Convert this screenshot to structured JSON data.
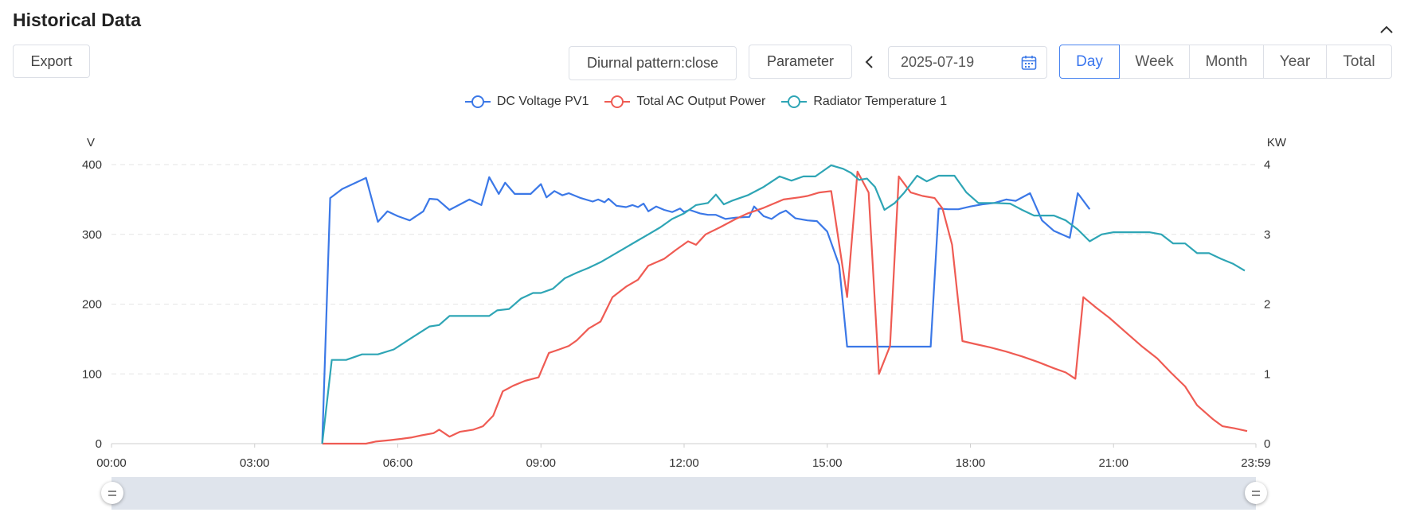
{
  "header": {
    "title": "Historical Data",
    "export_label": "Export",
    "diurnal_label": "Diurnal pattern:close",
    "parameter_label": "Parameter",
    "date_value": "2025-07-19",
    "periods": [
      "Day",
      "Week",
      "Month",
      "Year",
      "Total"
    ],
    "active_period": "Day"
  },
  "chart_data": {
    "type": "line",
    "xlabel": "",
    "x_ticks": [
      "00:00",
      "03:00",
      "06:00",
      "09:00",
      "12:00",
      "15:00",
      "18:00",
      "21:00",
      "23:59"
    ],
    "left_axis": {
      "unit": "V",
      "ylim": [
        0,
        400
      ],
      "ticks": [
        "0",
        "100",
        "200",
        "300",
        "400"
      ]
    },
    "right_axis": {
      "unit": "KW",
      "ylim": [
        0,
        4
      ],
      "ticks": [
        "0",
        "1",
        "2",
        "3",
        "4"
      ]
    },
    "grid": true,
    "legend_position": "top-center",
    "series": [
      {
        "name": "DC Voltage PV1",
        "color": "#3b78e7",
        "axis": "left",
        "points": [
          [
            "04:25",
            0
          ],
          [
            "04:35",
            352
          ],
          [
            "04:50",
            365
          ],
          [
            "05:05",
            373
          ],
          [
            "05:20",
            381
          ],
          [
            "05:35",
            318
          ],
          [
            "05:47",
            333
          ],
          [
            "06:00",
            326
          ],
          [
            "06:15",
            320
          ],
          [
            "06:32",
            333
          ],
          [
            "06:40",
            351
          ],
          [
            "06:50",
            350
          ],
          [
            "07:05",
            335
          ],
          [
            "07:20",
            344
          ],
          [
            "07:30",
            350
          ],
          [
            "07:45",
            342
          ],
          [
            "07:55",
            382
          ],
          [
            "08:07",
            358
          ],
          [
            "08:15",
            374
          ],
          [
            "08:27",
            358
          ],
          [
            "08:47",
            358
          ],
          [
            "09:00",
            372
          ],
          [
            "09:07",
            353
          ],
          [
            "09:17",
            362
          ],
          [
            "09:27",
            356
          ],
          [
            "09:35",
            359
          ],
          [
            "09:50",
            352
          ],
          [
            "10:05",
            347
          ],
          [
            "10:12",
            350
          ],
          [
            "10:20",
            346
          ],
          [
            "10:25",
            351
          ],
          [
            "10:35",
            341
          ],
          [
            "10:47",
            339
          ],
          [
            "10:55",
            342
          ],
          [
            "11:02",
            339
          ],
          [
            "11:09",
            344
          ],
          [
            "11:15",
            333
          ],
          [
            "11:25",
            340
          ],
          [
            "11:35",
            335
          ],
          [
            "11:45",
            332
          ],
          [
            "11:55",
            337
          ],
          [
            "12:00",
            332
          ],
          [
            "12:07",
            335
          ],
          [
            "12:20",
            330
          ],
          [
            "12:30",
            328
          ],
          [
            "12:40",
            328
          ],
          [
            "12:52",
            322
          ],
          [
            "13:05",
            324
          ],
          [
            "13:22",
            325
          ],
          [
            "13:28",
            340
          ],
          [
            "13:40",
            326
          ],
          [
            "13:50",
            322
          ],
          [
            "14:00",
            330
          ],
          [
            "14:08",
            334
          ],
          [
            "14:20",
            323
          ],
          [
            "14:35",
            320
          ],
          [
            "14:47",
            319
          ],
          [
            "15:00",
            304
          ],
          [
            "15:15",
            256
          ],
          [
            "15:25",
            139
          ],
          [
            "15:40",
            139
          ],
          [
            "17:10",
            139
          ],
          [
            "17:20",
            337
          ],
          [
            "17:32",
            336
          ],
          [
            "17:45",
            336
          ],
          [
            "18:00",
            340
          ],
          [
            "18:15",
            343
          ],
          [
            "18:30",
            345
          ],
          [
            "18:45",
            350
          ],
          [
            "18:57",
            348
          ],
          [
            "19:15",
            359
          ],
          [
            "19:30",
            320
          ],
          [
            "19:45",
            305
          ],
          [
            "20:05",
            295
          ],
          [
            "20:15",
            359
          ],
          [
            "20:30",
            336
          ]
        ]
      },
      {
        "name": "Total AC Output Power",
        "color": "#ef5b53",
        "axis": "right",
        "points": [
          [
            "04:25",
            0
          ],
          [
            "05:05",
            0
          ],
          [
            "05:20",
            0
          ],
          [
            "05:32",
            0.03
          ],
          [
            "05:50",
            0.05
          ],
          [
            "06:05",
            0.07
          ],
          [
            "06:18",
            0.09
          ],
          [
            "06:30",
            0.12
          ],
          [
            "06:45",
            0.15
          ],
          [
            "06:52",
            0.2
          ],
          [
            "07:05",
            0.1
          ],
          [
            "07:18",
            0.17
          ],
          [
            "07:35",
            0.2
          ],
          [
            "07:47",
            0.25
          ],
          [
            "08:00",
            0.4
          ],
          [
            "08:12",
            0.75
          ],
          [
            "08:25",
            0.83
          ],
          [
            "08:40",
            0.9
          ],
          [
            "08:57",
            0.95
          ],
          [
            "09:10",
            1.3
          ],
          [
            "09:23",
            1.35
          ],
          [
            "09:35",
            1.4
          ],
          [
            "09:45",
            1.48
          ],
          [
            "10:00",
            1.65
          ],
          [
            "10:15",
            1.75
          ],
          [
            "10:30",
            2.1
          ],
          [
            "10:47",
            2.25
          ],
          [
            "11:02",
            2.35
          ],
          [
            "11:15",
            2.55
          ],
          [
            "11:35",
            2.65
          ],
          [
            "11:50",
            2.78
          ],
          [
            "12:05",
            2.9
          ],
          [
            "12:15",
            2.85
          ],
          [
            "12:27",
            3.0
          ],
          [
            "12:45",
            3.1
          ],
          [
            "13:05",
            3.22
          ],
          [
            "13:20",
            3.3
          ],
          [
            "13:40",
            3.38
          ],
          [
            "14:05",
            3.5
          ],
          [
            "14:25",
            3.53
          ],
          [
            "14:35",
            3.55
          ],
          [
            "14:50",
            3.6
          ],
          [
            "15:05",
            3.62
          ],
          [
            "15:25",
            2.1
          ],
          [
            "15:38",
            3.9
          ],
          [
            "15:52",
            3.6
          ],
          [
            "16:05",
            1.0
          ],
          [
            "16:19",
            1.4
          ],
          [
            "16:30",
            3.83
          ],
          [
            "16:45",
            3.6
          ],
          [
            "17:00",
            3.55
          ],
          [
            "17:15",
            3.52
          ],
          [
            "17:25",
            3.37
          ],
          [
            "17:37",
            2.85
          ],
          [
            "17:50",
            1.47
          ],
          [
            "18:05",
            1.43
          ],
          [
            "18:25",
            1.38
          ],
          [
            "18:45",
            1.32
          ],
          [
            "19:05",
            1.25
          ],
          [
            "19:25",
            1.17
          ],
          [
            "19:45",
            1.08
          ],
          [
            "20:00",
            1.02
          ],
          [
            "20:12",
            0.93
          ],
          [
            "20:22",
            2.1
          ],
          [
            "20:38",
            1.95
          ],
          [
            "20:55",
            1.8
          ],
          [
            "21:15",
            1.6
          ],
          [
            "21:35",
            1.4
          ],
          [
            "21:55",
            1.22
          ],
          [
            "22:12",
            1.02
          ],
          [
            "22:30",
            0.82
          ],
          [
            "22:45",
            0.55
          ],
          [
            "23:05",
            0.35
          ],
          [
            "23:17",
            0.25
          ],
          [
            "23:32",
            0.22
          ],
          [
            "23:48",
            0.18
          ]
        ]
      },
      {
        "name": "Radiator Temperature 1",
        "color": "#2ea5b5",
        "axis": "left",
        "points": [
          [
            "04:25",
            0
          ],
          [
            "04:37",
            120
          ],
          [
            "04:55",
            120
          ],
          [
            "05:15",
            128
          ],
          [
            "05:35",
            128
          ],
          [
            "05:55",
            135
          ],
          [
            "06:15",
            150
          ],
          [
            "06:40",
            168
          ],
          [
            "06:52",
            170
          ],
          [
            "07:05",
            183
          ],
          [
            "07:40",
            183
          ],
          [
            "07:55",
            183
          ],
          [
            "08:05",
            191
          ],
          [
            "08:20",
            193
          ],
          [
            "08:35",
            208
          ],
          [
            "08:50",
            216
          ],
          [
            "09:00",
            216
          ],
          [
            "09:15",
            222
          ],
          [
            "09:30",
            237
          ],
          [
            "09:45",
            245
          ],
          [
            "10:00",
            252
          ],
          [
            "10:15",
            260
          ],
          [
            "10:30",
            270
          ],
          [
            "10:45",
            280
          ],
          [
            "11:00",
            290
          ],
          [
            "11:15",
            300
          ],
          [
            "11:30",
            310
          ],
          [
            "11:45",
            322
          ],
          [
            "12:00",
            330
          ],
          [
            "12:15",
            342
          ],
          [
            "12:30",
            345
          ],
          [
            "12:40",
            357
          ],
          [
            "12:50",
            343
          ],
          [
            "13:00",
            348
          ],
          [
            "13:20",
            356
          ],
          [
            "13:40",
            368
          ],
          [
            "14:00",
            383
          ],
          [
            "14:15",
            377
          ],
          [
            "14:30",
            383
          ],
          [
            "14:45",
            383
          ],
          [
            "15:05",
            399
          ],
          [
            "15:20",
            394
          ],
          [
            "15:30",
            388
          ],
          [
            "15:40",
            378
          ],
          [
            "15:50",
            380
          ],
          [
            "16:00",
            368
          ],
          [
            "16:12",
            335
          ],
          [
            "16:25",
            345
          ],
          [
            "16:37",
            360
          ],
          [
            "16:53",
            384
          ],
          [
            "17:05",
            376
          ],
          [
            "17:20",
            384
          ],
          [
            "17:40",
            384
          ],
          [
            "17:55",
            360
          ],
          [
            "18:10",
            345
          ],
          [
            "18:30",
            345
          ],
          [
            "18:50",
            344
          ],
          [
            "19:05",
            335
          ],
          [
            "19:20",
            327
          ],
          [
            "19:45",
            327
          ],
          [
            "20:00",
            320
          ],
          [
            "20:15",
            307
          ],
          [
            "20:30",
            290
          ],
          [
            "20:45",
            300
          ],
          [
            "21:00",
            303
          ],
          [
            "21:15",
            303
          ],
          [
            "21:30",
            303
          ],
          [
            "21:45",
            303
          ],
          [
            "22:00",
            300
          ],
          [
            "22:15",
            287
          ],
          [
            "22:30",
            287
          ],
          [
            "22:45",
            273
          ],
          [
            "23:00",
            273
          ],
          [
            "23:15",
            265
          ],
          [
            "23:30",
            258
          ],
          [
            "23:45",
            248
          ]
        ]
      }
    ]
  }
}
